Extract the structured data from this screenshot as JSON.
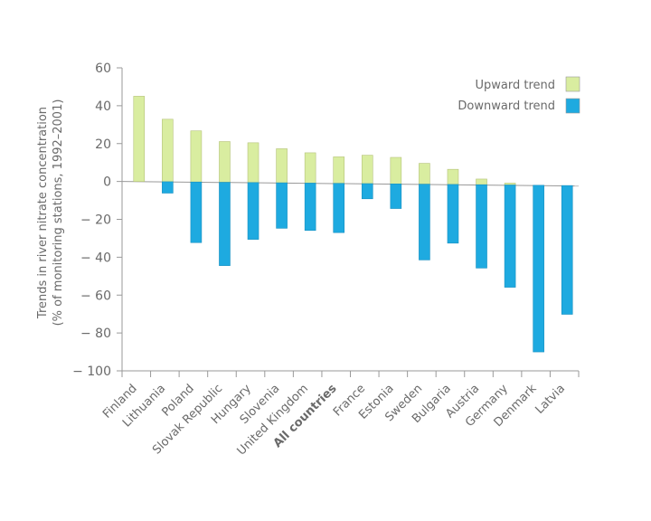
{
  "chart_data": {
    "type": "bar",
    "title": "",
    "ylabel_lines": [
      "Trends in river nitrate concentration",
      "(% of monitoring stations, 1992–2001)"
    ],
    "xlabel": "",
    "ylim": [
      -100,
      60
    ],
    "yticks": [
      60,
      40,
      20,
      0,
      -20,
      -40,
      -60,
      -80,
      -100
    ],
    "ytick_labels": [
      "60",
      "40",
      "20",
      "0",
      "− 20",
      "− 40",
      "− 60",
      "− 80",
      "− 100"
    ],
    "grid": false,
    "legend_position": "top-right",
    "categories": [
      "Finland",
      "Lithuania",
      "Poland",
      "Slovak Republic",
      "Hungary",
      "Slovenia",
      "United Kingdom",
      "All countries",
      "France",
      "Estonia",
      "Sweden",
      "Bulgaria",
      "Austria",
      "Germany",
      "Denmark",
      "Latvia"
    ],
    "bold_category": "All countries",
    "series": [
      {
        "name": "Upward trend",
        "color": "#d9eda0",
        "values": [
          45,
          33,
          27,
          21.5,
          21,
          18,
          16,
          14,
          15,
          14,
          11,
          8,
          3,
          1,
          0,
          0
        ]
      },
      {
        "name": "Downward trend",
        "color": "#1eaae0",
        "values": [
          0,
          -6,
          -32,
          -44,
          -30,
          -24,
          -25,
          -26,
          -8,
          -13,
          -40,
          -31,
          -44,
          -54,
          -88,
          -68
        ]
      }
    ]
  }
}
